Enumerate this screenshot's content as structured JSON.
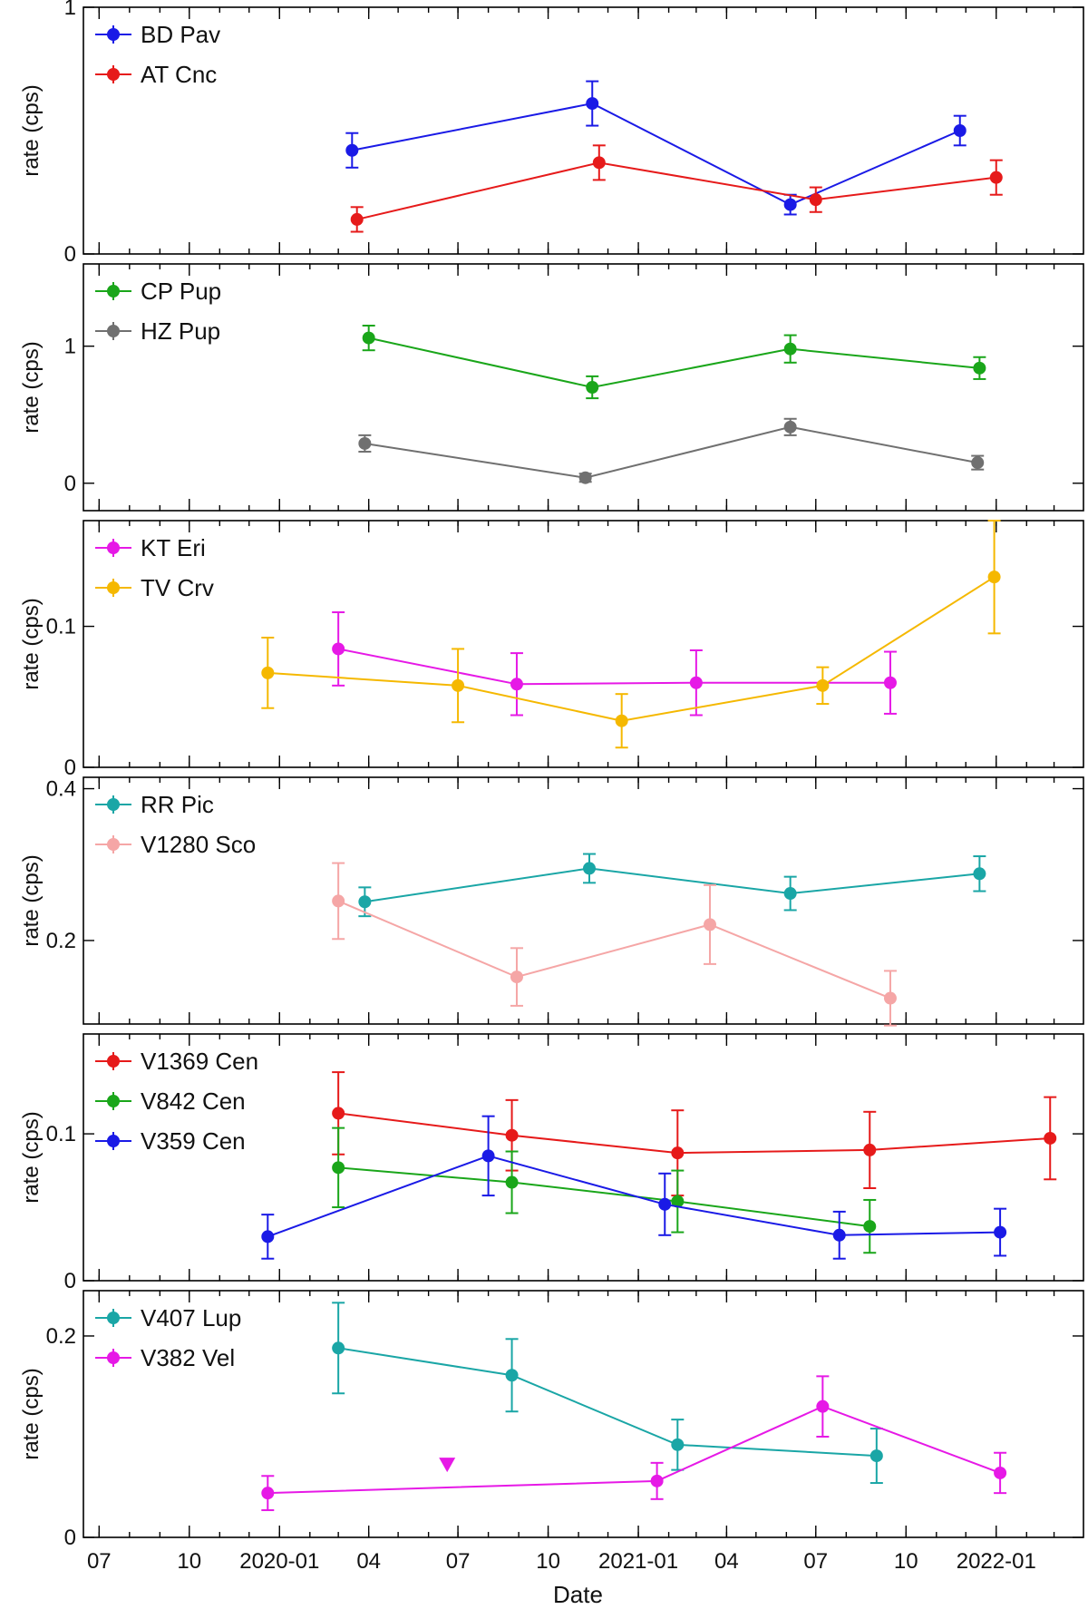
{
  "chart_data": {
    "type": "line",
    "xlabel": "Date",
    "x_ticks": [
      "07",
      "10",
      "2020-01",
      "04",
      "07",
      "10",
      "2021-01",
      "04",
      "07",
      "10",
      "2022-01"
    ],
    "x_tick_values": [
      "2019-07-01",
      "2019-10-01",
      "2020-01-01",
      "2020-04-01",
      "2020-07-01",
      "2020-10-01",
      "2021-01-01",
      "2021-04-01",
      "2021-07-01",
      "2021-10-01",
      "2022-01-01"
    ],
    "xlim": [
      "2019-06-15",
      "2022-03-31"
    ],
    "panels": [
      {
        "ylabel": "rate (cps)",
        "ylim": [
          0,
          1
        ],
        "yticks": [
          0,
          1
        ],
        "series": [
          {
            "name": "BD Pav",
            "color": "#1a1ae6",
            "points": [
              {
                "date": "2020-03-15",
                "y": 0.42,
                "err": 0.07
              },
              {
                "date": "2020-11-15",
                "y": 0.61,
                "err": 0.09
              },
              {
                "date": "2021-06-05",
                "y": 0.2,
                "err": 0.04
              },
              {
                "date": "2021-11-25",
                "y": 0.5,
                "err": 0.06
              }
            ]
          },
          {
            "name": "AT Cnc",
            "color": "#e61a1a",
            "points": [
              {
                "date": "2020-03-20",
                "y": 0.14,
                "err": 0.05
              },
              {
                "date": "2020-11-22",
                "y": 0.37,
                "err": 0.07
              },
              {
                "date": "2021-07-01",
                "y": 0.22,
                "err": 0.05
              },
              {
                "date": "2022-01-01",
                "y": 0.31,
                "err": 0.07
              }
            ]
          }
        ]
      },
      {
        "ylabel": "rate (cps)",
        "ylim": [
          -0.2,
          1.6
        ],
        "yticks": [
          0,
          1
        ],
        "series": [
          {
            "name": "CP Pup",
            "color": "#1aa61a",
            "points": [
              {
                "date": "2020-04-01",
                "y": 1.06,
                "err": 0.09
              },
              {
                "date": "2020-11-15",
                "y": 0.7,
                "err": 0.08
              },
              {
                "date": "2021-06-05",
                "y": 0.98,
                "err": 0.1
              },
              {
                "date": "2021-12-15",
                "y": 0.84,
                "err": 0.08
              }
            ]
          },
          {
            "name": "HZ Pup",
            "color": "#707070",
            "points": [
              {
                "date": "2020-03-28",
                "y": 0.29,
                "err": 0.06
              },
              {
                "date": "2020-11-08",
                "y": 0.04,
                "err": 0.03
              },
              {
                "date": "2021-06-05",
                "y": 0.41,
                "err": 0.06
              },
              {
                "date": "2021-12-13",
                "y": 0.15,
                "err": 0.05
              }
            ]
          }
        ]
      },
      {
        "ylabel": "rate (cps)",
        "ylim": [
          0,
          0.175
        ],
        "yticks": [
          0,
          0.1
        ],
        "series": [
          {
            "name": "KT Eri",
            "color": "#e619e6",
            "points": [
              {
                "date": "2020-03-01",
                "y": 0.084,
                "err": 0.026
              },
              {
                "date": "2020-08-30",
                "y": 0.059,
                "err": 0.022
              },
              {
                "date": "2021-03-01",
                "y": 0.06,
                "err": 0.023
              },
              {
                "date": "2021-09-15",
                "y": 0.06,
                "err": 0.022
              }
            ]
          },
          {
            "name": "TV Crv",
            "color": "#f5b800",
            "points": [
              {
                "date": "2019-12-20",
                "y": 0.067,
                "err": 0.025
              },
              {
                "date": "2020-07-01",
                "y": 0.058,
                "err": 0.026
              },
              {
                "date": "2020-12-15",
                "y": 0.033,
                "err": 0.019
              },
              {
                "date": "2021-07-08",
                "y": 0.058,
                "err": 0.013
              },
              {
                "date": "2021-12-30",
                "y": 0.135,
                "err": 0.04
              }
            ]
          }
        ]
      },
      {
        "ylabel": "rate (cps)",
        "ylim": [
          0.09,
          0.415
        ],
        "yticks": [
          0.2,
          0.4
        ],
        "series": [
          {
            "name": "RR Pic",
            "color": "#1aa6a6",
            "points": [
              {
                "date": "2020-03-28",
                "y": 0.251,
                "err": 0.019
              },
              {
                "date": "2020-11-12",
                "y": 0.295,
                "err": 0.019
              },
              {
                "date": "2021-06-05",
                "y": 0.262,
                "err": 0.022
              },
              {
                "date": "2021-12-15",
                "y": 0.288,
                "err": 0.023
              }
            ]
          },
          {
            "name": "V1280 Sco",
            "color": "#f5a6a6",
            "points": [
              {
                "date": "2020-03-01",
                "y": 0.252,
                "err": 0.05
              },
              {
                "date": "2020-08-30",
                "y": 0.152,
                "err": 0.038
              },
              {
                "date": "2021-03-15",
                "y": 0.221,
                "err": 0.052
              },
              {
                "date": "2021-09-15",
                "y": 0.124,
                "err": 0.036
              }
            ]
          }
        ]
      },
      {
        "ylabel": "rate (cps)",
        "ylim": [
          0,
          0.168
        ],
        "yticks": [
          0,
          0.1
        ],
        "series": [
          {
            "name": "V1369 Cen",
            "color": "#e61a1a",
            "points": [
              {
                "date": "2020-03-01",
                "y": 0.114,
                "err": 0.028
              },
              {
                "date": "2020-08-25",
                "y": 0.099,
                "err": 0.024
              },
              {
                "date": "2021-02-10",
                "y": 0.087,
                "err": 0.029
              },
              {
                "date": "2021-08-25",
                "y": 0.089,
                "err": 0.026
              },
              {
                "date": "2022-02-25",
                "y": 0.097,
                "err": 0.028
              }
            ]
          },
          {
            "name": "V842 Cen",
            "color": "#1aa61a",
            "points": [
              {
                "date": "2020-03-01",
                "y": 0.077,
                "err": 0.027
              },
              {
                "date": "2020-08-25",
                "y": 0.067,
                "err": 0.021
              },
              {
                "date": "2021-02-10",
                "y": 0.054,
                "err": 0.021
              },
              {
                "date": "2021-08-25",
                "y": 0.037,
                "err": 0.018
              }
            ]
          },
          {
            "name": "V359 Cen",
            "color": "#1a1ae6",
            "points": [
              {
                "date": "2019-12-20",
                "y": 0.03,
                "err": 0.015
              },
              {
                "date": "2020-08-01",
                "y": 0.085,
                "err": 0.027
              },
              {
                "date": "2021-01-28",
                "y": 0.052,
                "err": 0.021
              },
              {
                "date": "2021-07-25",
                "y": 0.031,
                "err": 0.016
              },
              {
                "date": "2022-01-05",
                "y": 0.033,
                "err": 0.016
              }
            ]
          }
        ]
      },
      {
        "ylabel": "rate (cps)",
        "ylim": [
          0,
          0.245
        ],
        "yticks": [
          0,
          0.2
        ],
        "series": [
          {
            "name": "V407 Lup",
            "color": "#1aa6a6",
            "points": [
              {
                "date": "2020-03-01",
                "y": 0.188,
                "err": 0.045
              },
              {
                "date": "2020-08-25",
                "y": 0.161,
                "err": 0.036
              },
              {
                "date": "2021-02-10",
                "y": 0.092,
                "err": 0.025
              },
              {
                "date": "2021-09-01",
                "y": 0.081,
                "err": 0.027
              }
            ]
          },
          {
            "name": "V382 Vel",
            "color": "#e619e6",
            "points": [
              {
                "date": "2019-12-20",
                "y": 0.044,
                "err": 0.017
              },
              {
                "date": "2021-01-20",
                "y": 0.056,
                "err": 0.018
              },
              {
                "date": "2021-07-08",
                "y": 0.13,
                "err": 0.03
              },
              {
                "date": "2022-01-05",
                "y": 0.064,
                "err": 0.02
              }
            ],
            "upper_limits": [
              {
                "date": "2020-06-20",
                "y": 0.072
              }
            ]
          }
        ]
      }
    ]
  }
}
